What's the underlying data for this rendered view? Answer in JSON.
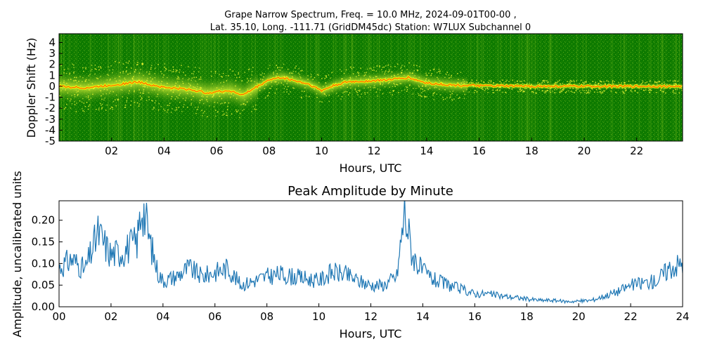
{
  "chart_data": [
    {
      "type": "heatmap",
      "title_line1": "Grape Narrow Spectrum, Freq. = 10.0 MHz, 2024-09-01T00-00 ,",
      "title_line2": "Lat.  35.10, Long. -111.71 (GridDM45dc) Station: W7LUX Subchannel 0",
      "xlabel": "Hours, UTC",
      "ylabel": "Doppler Shift (Hz)",
      "xlim": [
        0,
        23.75
      ],
      "ylim": [
        -5,
        4.8
      ],
      "x_ticks": [
        2,
        4,
        6,
        8,
        10,
        12,
        14,
        16,
        18,
        20,
        22
      ],
      "x_tick_labels": [
        "02",
        "04",
        "06",
        "08",
        "10",
        "12",
        "14",
        "16",
        "18",
        "20",
        "22"
      ],
      "y_ticks": [
        4,
        3,
        2,
        1,
        0,
        -1,
        -2,
        -3,
        -4,
        -5
      ],
      "y_tick_labels": [
        "4",
        "3",
        "2",
        "1",
        "0",
        "-1",
        "-2",
        "-3",
        "-4",
        "-5"
      ],
      "colors": {
        "background": "#0d7a00",
        "mid": "#9acd32",
        "high": "#ffff00",
        "peak": "#ff2000"
      },
      "doppler_trace": {
        "hours": [
          0,
          1,
          2,
          3,
          4,
          5,
          5.6,
          6,
          6.5,
          7,
          7.5,
          8,
          8.5,
          9,
          9.5,
          10,
          10.5,
          11,
          12,
          13,
          13.3,
          13.7,
          14,
          15,
          16,
          18,
          20,
          22,
          23.75
        ],
        "hz": [
          0,
          -0.15,
          0.1,
          0.4,
          -0.1,
          -0.3,
          -0.6,
          -0.5,
          -0.4,
          -0.8,
          -0.1,
          0.6,
          0.8,
          0.5,
          0.2,
          -0.4,
          0.1,
          0.4,
          0.5,
          0.7,
          0.8,
          0.5,
          0.3,
          0.1,
          0.05,
          0,
          0,
          0,
          0
        ]
      }
    },
    {
      "type": "line",
      "title": "Peak Amplitude by Minute",
      "xlabel": "Hours, UTC",
      "ylabel": "Amplitude, uncalibrated units",
      "xlim": [
        0,
        24
      ],
      "ylim": [
        0,
        0.245
      ],
      "x_ticks": [
        0,
        2,
        4,
        6,
        8,
        10,
        12,
        14,
        16,
        18,
        20,
        22,
        24
      ],
      "x_tick_labels": [
        "00",
        "02",
        "04",
        "06",
        "08",
        "10",
        "12",
        "14",
        "16",
        "18",
        "20",
        "22",
        "24"
      ],
      "y_ticks": [
        0,
        0.05,
        0.1,
        0.15,
        0.2
      ],
      "y_tick_labels": [
        "0.00",
        "0.05",
        "0.10",
        "0.15",
        "0.20"
      ],
      "line_color": "#1f77b4",
      "series": [
        {
          "x": [
            0,
            0.5,
            1,
            1.5,
            2,
            2.5,
            3,
            3.2,
            3.5,
            3.8,
            4,
            4.5,
            5,
            5.5,
            6,
            6.5,
            7,
            7.5,
            8,
            8.5,
            9,
            9.5,
            10,
            10.5,
            11,
            11.5,
            12,
            12.5,
            13,
            13.3,
            13.6,
            14,
            14.5,
            15,
            15.5,
            16,
            16.5,
            17,
            17.5,
            18,
            18.5,
            19,
            19.5,
            20,
            20.5,
            21,
            21.5,
            22,
            22.5,
            23,
            23.5,
            24
          ],
          "y": [
            0.09,
            0.11,
            0.085,
            0.17,
            0.12,
            0.13,
            0.15,
            0.24,
            0.15,
            0.08,
            0.06,
            0.07,
            0.09,
            0.07,
            0.08,
            0.09,
            0.05,
            0.06,
            0.07,
            0.075,
            0.07,
            0.065,
            0.06,
            0.08,
            0.075,
            0.06,
            0.05,
            0.05,
            0.07,
            0.22,
            0.12,
            0.08,
            0.06,
            0.05,
            0.04,
            0.03,
            0.03,
            0.025,
            0.022,
            0.018,
            0.015,
            0.015,
            0.012,
            0.013,
            0.015,
            0.025,
            0.035,
            0.05,
            0.055,
            0.06,
            0.09,
            0.1
          ]
        }
      ]
    }
  ]
}
